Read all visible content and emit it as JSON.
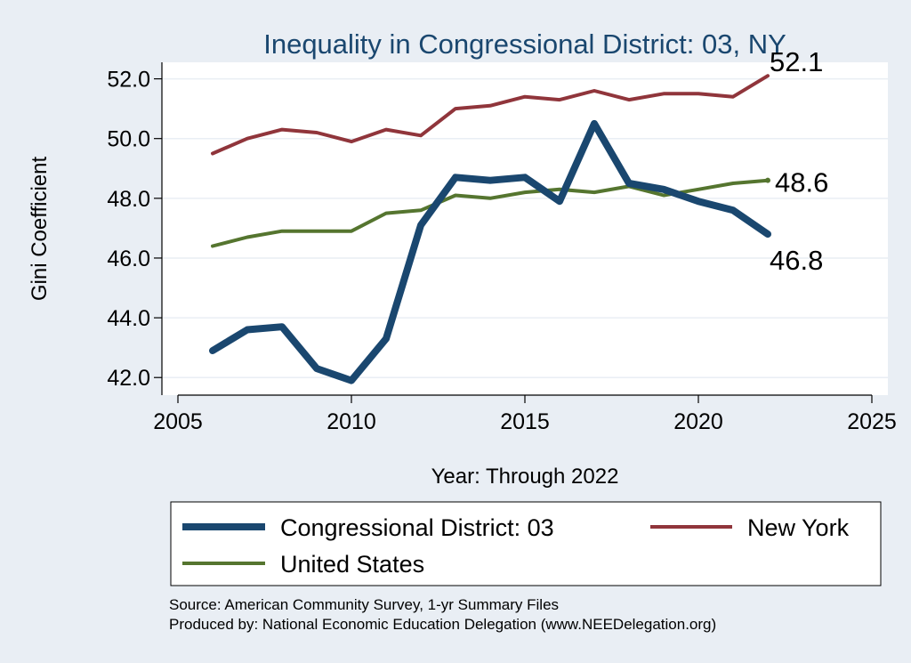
{
  "chart_data": {
    "type": "line",
    "title": "Inequality in Congressional District:  03, NY",
    "xlabel": "Year: Through 2022",
    "ylabel": "Gini Coefficient",
    "xlim": [
      2005,
      2025
    ],
    "ylim": [
      41.5,
      53.0
    ],
    "xticks": [
      2005,
      2010,
      2015,
      2020,
      2025
    ],
    "yticks": [
      42.0,
      44.0,
      46.0,
      48.0,
      50.0,
      52.0
    ],
    "x": [
      2006,
      2007,
      2008,
      2009,
      2010,
      2011,
      2012,
      2013,
      2014,
      2015,
      2016,
      2017,
      2018,
      2019,
      2020,
      2021,
      2022
    ],
    "grid": true,
    "series": [
      {
        "key": "district",
        "name": "Congressional District:  03",
        "color": "#1a476f",
        "values": [
          42.9,
          43.6,
          43.7,
          42.3,
          41.9,
          43.3,
          47.1,
          48.7,
          48.6,
          48.7,
          47.9,
          50.5,
          48.5,
          48.3,
          47.9,
          47.6,
          46.8
        ],
        "end_label": "46.8"
      },
      {
        "key": "state",
        "name": "New York",
        "color": "#90353b",
        "values": [
          49.5,
          50.0,
          50.3,
          50.2,
          49.9,
          50.3,
          50.1,
          51.0,
          51.1,
          51.4,
          51.3,
          51.6,
          51.3,
          51.5,
          51.5,
          51.4,
          52.1
        ],
        "end_label": "52.1"
      },
      {
        "key": "nation",
        "name": "United States",
        "color": "#55752f",
        "values": [
          46.4,
          46.7,
          46.9,
          46.9,
          46.9,
          47.5,
          47.6,
          48.1,
          48.0,
          48.2,
          48.3,
          48.2,
          48.4,
          48.1,
          48.3,
          48.5,
          48.6
        ],
        "end_label": "48.6"
      }
    ],
    "legend": {
      "placement": "bottom",
      "items": [
        {
          "series": "district",
          "label": "Congressional District:  03"
        },
        {
          "series": "state",
          "label": "New York"
        },
        {
          "series": "nation",
          "label": "United States"
        }
      ]
    },
    "notes": [
      "Source: American Community Survey, 1-yr Summary Files",
      "Produced by: National Economic Education Delegation (www.NEEDelegation.org)"
    ]
  }
}
